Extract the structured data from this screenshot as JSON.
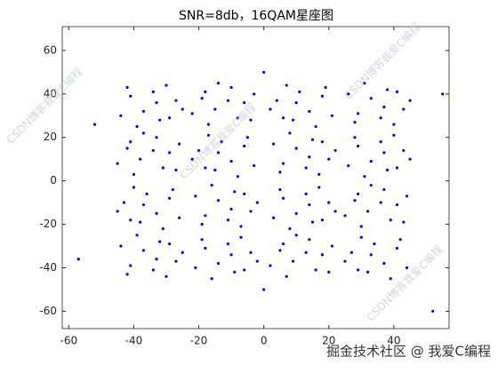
{
  "chart_data": {
    "type": "scatter",
    "title": "SNR=8db，16QAM星座图",
    "color": "#0000ff",
    "xlim": [
      -62,
      57
    ],
    "ylim": [
      -68,
      71
    ],
    "xticks": [
      -60,
      -40,
      -20,
      0,
      20,
      40
    ],
    "yticks": [
      -60,
      -40,
      -20,
      0,
      20,
      40,
      60
    ],
    "watermarks": [
      "CSDN博客我爱C编程",
      "CSDN博客我爱C编程",
      "CSDN博客我爱C编程",
      "CSDN博客我爱C编程",
      "掘金技术社区 @ 我爱C编程"
    ],
    "x": [
      -41,
      -32,
      -27,
      -37,
      -30,
      -44,
      -34,
      -39,
      -25,
      -42,
      -33,
      -29,
      -8,
      -19,
      -10,
      -15,
      -3,
      -17,
      -6,
      -22,
      -14,
      -4,
      -11,
      -18,
      18,
      9,
      4,
      14,
      7,
      21,
      11,
      16,
      2,
      19,
      10,
      6,
      29,
      38,
      43,
      33,
      40,
      26,
      36,
      31,
      45,
      28,
      37,
      41,
      -31,
      -42,
      -33,
      -38,
      -26,
      -40,
      -29,
      -45,
      -37,
      -27,
      -34,
      -41,
      -6,
      -15,
      -20,
      -10,
      -17,
      -3,
      -13,
      -8,
      -22,
      -5,
      -14,
      -18,
      6,
      15,
      20,
      10,
      17,
      3,
      13,
      8,
      22,
      5,
      14,
      18,
      29,
      38,
      43,
      33,
      40,
      26,
      36,
      31,
      45,
      28,
      37,
      41,
      -29,
      -38,
      -43,
      -33,
      -40,
      -26,
      -36,
      -31,
      -45,
      -28,
      -37,
      -41,
      -18,
      -9,
      -4,
      -14,
      -7,
      -21,
      -11,
      -16,
      -2,
      -19,
      -10,
      -6,
      6,
      15,
      20,
      10,
      17,
      3,
      13,
      8,
      22,
      5,
      14,
      18,
      39,
      28,
      37,
      32,
      44,
      30,
      41,
      25,
      33,
      43,
      36,
      29,
      -41,
      -32,
      -27,
      -37,
      -30,
      -44,
      -34,
      -39,
      -25,
      -42,
      -33,
      -29,
      -18,
      -9,
      -4,
      -14,
      -7,
      -21,
      -11,
      -16,
      -2,
      -19,
      -10,
      -6,
      16,
      5,
      14,
      9,
      21,
      7,
      18,
      2,
      10,
      20,
      13,
      6,
      41,
      32,
      27,
      37,
      30,
      44,
      34,
      39,
      25,
      42,
      33,
      29,
      -57,
      52,
      55,
      -52,
      0,
      0
    ],
    "values": [
      39,
      28,
      37,
      32,
      44,
      30,
      41,
      25,
      33,
      43,
      36,
      29,
      29,
      38,
      43,
      33,
      40,
      26,
      36,
      31,
      45,
      28,
      37,
      41,
      39,
      28,
      37,
      32,
      44,
      30,
      41,
      25,
      33,
      43,
      36,
      29,
      31,
      42,
      33,
      38,
      26,
      40,
      29,
      45,
      37,
      27,
      34,
      41,
      6,
      15,
      20,
      10,
      17,
      3,
      13,
      8,
      22,
      5,
      14,
      18,
      16,
      5,
      14,
      9,
      21,
      7,
      18,
      2,
      10,
      20,
      13,
      6,
      8,
      19,
      10,
      15,
      3,
      17,
      6,
      22,
      14,
      4,
      11,
      18,
      16,
      5,
      14,
      9,
      21,
      7,
      18,
      2,
      10,
      20,
      13,
      6,
      -8,
      -19,
      -10,
      -15,
      -3,
      -17,
      -6,
      -22,
      -14,
      -4,
      -11,
      -18,
      -16,
      -5,
      -14,
      -9,
      -21,
      -7,
      -18,
      -2,
      -10,
      -20,
      -13,
      -6,
      -8,
      -19,
      -10,
      -15,
      -3,
      -17,
      -6,
      -22,
      -14,
      -4,
      -11,
      -18,
      -18,
      -9,
      -4,
      -14,
      -7,
      -21,
      -11,
      -16,
      -2,
      -19,
      -10,
      -6,
      -39,
      -28,
      -37,
      -32,
      -44,
      -30,
      -41,
      -25,
      -33,
      -43,
      -36,
      -29,
      -31,
      -42,
      -33,
      -38,
      -26,
      -40,
      -29,
      -45,
      -37,
      -27,
      -34,
      -41,
      -41,
      -32,
      -27,
      -37,
      -30,
      -44,
      -34,
      -39,
      -25,
      -42,
      -33,
      -29,
      -31,
      -42,
      -33,
      -38,
      -26,
      -40,
      -29,
      -45,
      -37,
      -27,
      -34,
      -41,
      -36,
      -60,
      40,
      26,
      -50,
      50
    ]
  }
}
